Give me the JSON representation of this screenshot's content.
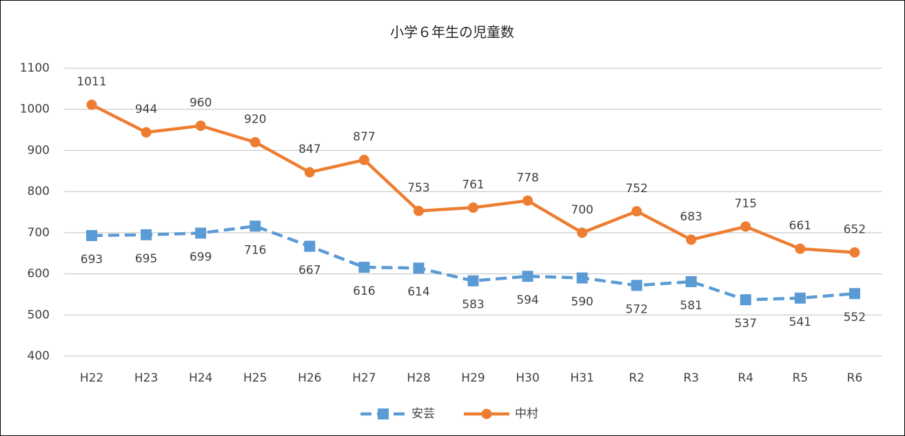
{
  "chart_data": {
    "type": "line",
    "title": "小学６年生の児童数",
    "categories": [
      "H22",
      "H23",
      "H24",
      "H25",
      "H26",
      "H27",
      "H28",
      "H29",
      "H30",
      "H31",
      "R2",
      "R3",
      "R4",
      "R5",
      "R6"
    ],
    "series": [
      {
        "name": "安芸",
        "color": "#5b9bd5",
        "marker": "square",
        "dashed": true,
        "values": [
          693,
          695,
          699,
          716,
          667,
          616,
          614,
          583,
          594,
          590,
          572,
          581,
          537,
          541,
          552
        ]
      },
      {
        "name": "中村",
        "color": "#ed7d31",
        "marker": "circle",
        "dashed": false,
        "values": [
          1011,
          944,
          960,
          920,
          847,
          877,
          753,
          761,
          778,
          700,
          752,
          683,
          715,
          661,
          652
        ]
      }
    ],
    "ylim": [
      400,
      1100
    ],
    "yticks": [
      400,
      500,
      600,
      700,
      800,
      900,
      1000,
      1100
    ],
    "grid": true,
    "legend": "bottom"
  }
}
